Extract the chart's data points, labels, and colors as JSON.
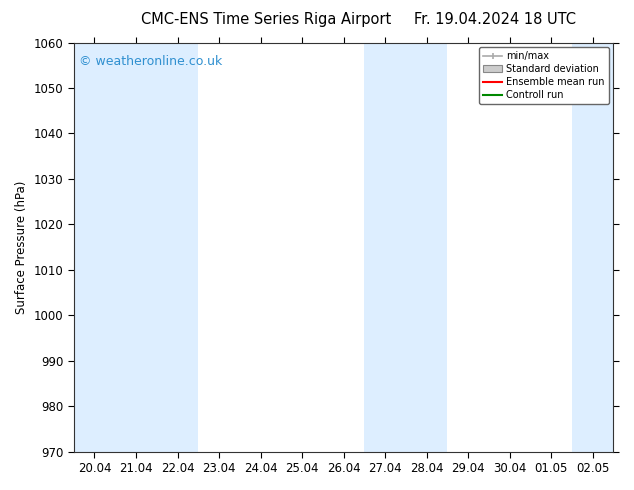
{
  "title_left": "CMC-ENS Time Series Riga Airport",
  "title_right": "Fr. 19.04.2024 18 UTC",
  "ylabel": "Surface Pressure (hPa)",
  "ylim": [
    970,
    1060
  ],
  "yticks": [
    970,
    980,
    990,
    1000,
    1010,
    1020,
    1030,
    1040,
    1050,
    1060
  ],
  "xtick_labels": [
    "20.04",
    "21.04",
    "22.04",
    "23.04",
    "24.04",
    "25.04",
    "26.04",
    "27.04",
    "28.04",
    "29.04",
    "30.04",
    "01.05",
    "02.05"
  ],
  "shaded_band_color": "#ddeeff",
  "background_color": "#ffffff",
  "plot_bg_color": "#ffffff",
  "watermark_text": "© weatheronline.co.uk",
  "watermark_color": "#3090d0",
  "legend_labels": [
    "min/max",
    "Standard deviation",
    "Ensemble mean run",
    "Controll run"
  ],
  "legend_line_color": "#aaaaaa",
  "legend_std_color": "#cccccc",
  "legend_ens_color": "#ff0000",
  "legend_ctrl_color": "#008800",
  "title_fontsize": 10.5,
  "tick_fontsize": 8.5,
  "ylabel_fontsize": 8.5,
  "watermark_fontsize": 9,
  "shade_ranges": [
    [
      0,
      1
    ],
    [
      2,
      2
    ],
    [
      7,
      8
    ],
    [
      12,
      12
    ]
  ]
}
